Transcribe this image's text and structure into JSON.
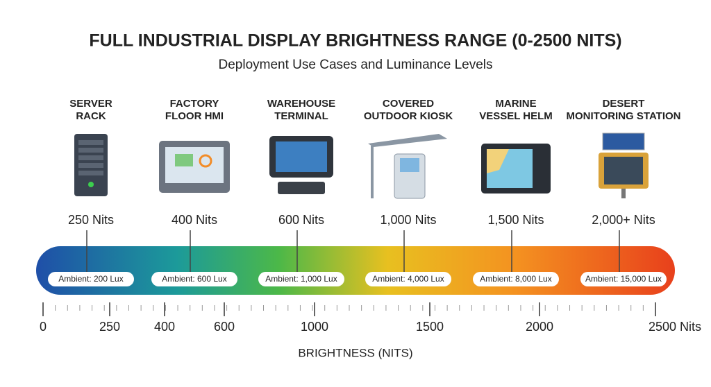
{
  "header": {
    "title": "FULL INDUSTRIAL DISPLAY BRIGHTNESS RANGE (0-2500 NITS)",
    "subtitle": "Deployment Use Cases and Luminance Levels"
  },
  "use_cases": [
    {
      "label_lines": [
        "SERVER",
        "RACK"
      ],
      "nits": "250 Nits",
      "ambient": "Ambient: 200 Lux"
    },
    {
      "label_lines": [
        "FACTORY",
        "FLOOR HMI"
      ],
      "nits": "400 Nits",
      "ambient": "Ambient: 600 Lux"
    },
    {
      "label_lines": [
        "WAREHOUSE",
        "TERMINAL"
      ],
      "nits": "600 Nits",
      "ambient": "Ambient: 1,000 Lux"
    },
    {
      "label_lines": [
        "COVERED",
        "OUTDOOR KIOSK"
      ],
      "nits": "1,000 Nits",
      "ambient": "Ambient: 4,000 Lux"
    },
    {
      "label_lines": [
        "MARINE",
        "VESSEL HELM"
      ],
      "nits": "1,500 Nits",
      "ambient": "Ambient: 8,000 Lux"
    },
    {
      "label_lines": [
        "DESERT",
        "MONITORING STATION"
      ],
      "nits": "2,000+ Nits",
      "ambient": "Ambient: 15,000 Lux"
    }
  ],
  "axis": {
    "ticks": [
      "0",
      "250",
      "400",
      "600",
      "1000",
      "1500",
      "2000",
      "2500 Nits"
    ],
    "label": "BRIGHTNESS (NITS)"
  }
}
